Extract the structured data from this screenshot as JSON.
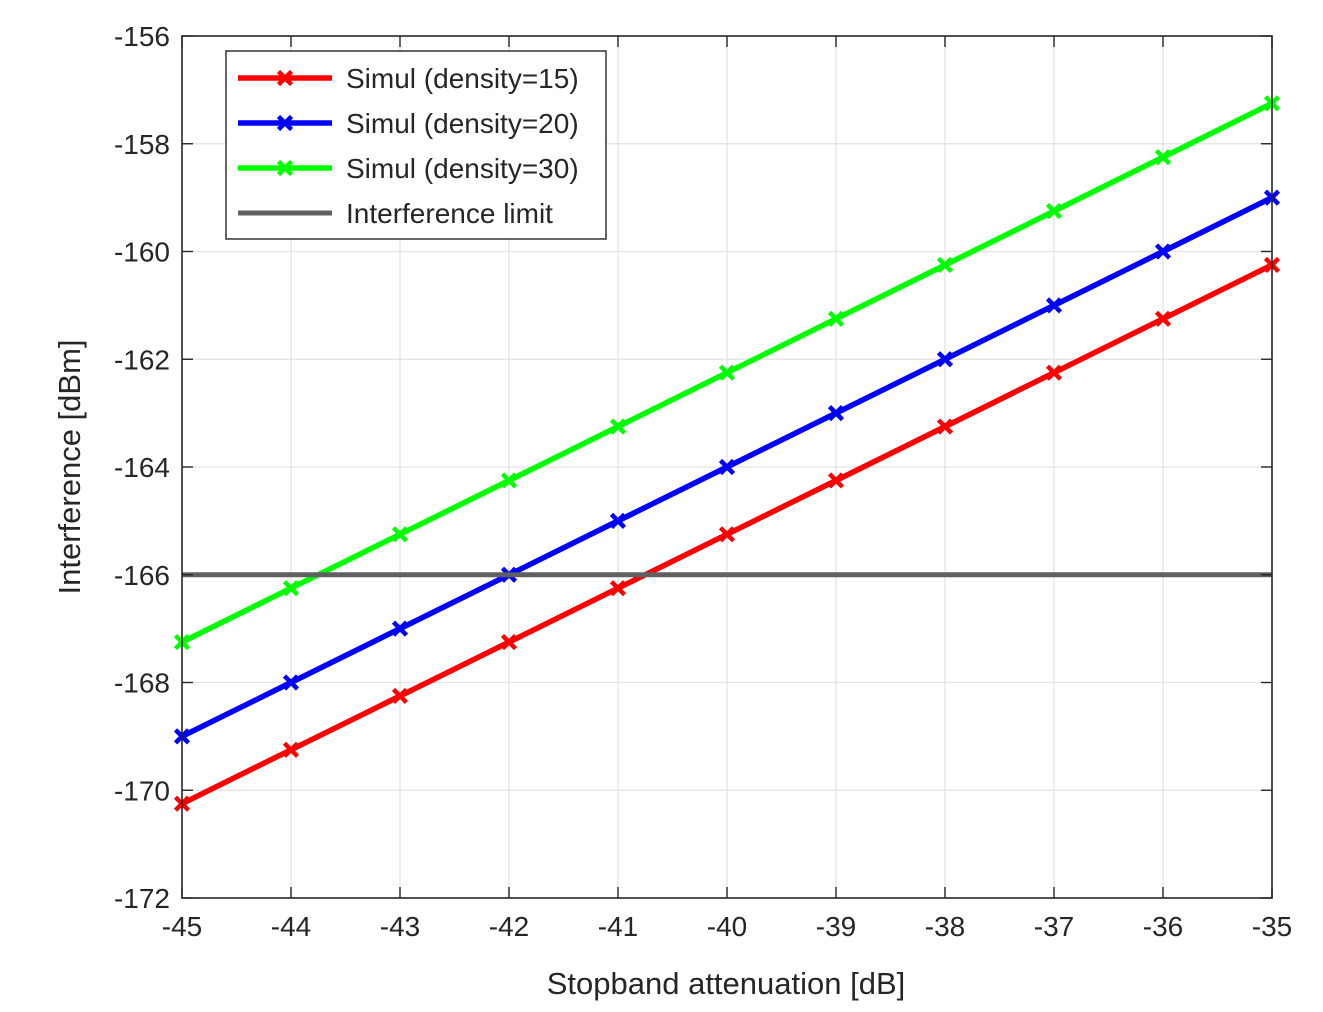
{
  "chart_data": {
    "type": "line",
    "title": "",
    "xlabel": "Stopband attenuation [dB]",
    "ylabel": "Interference [dBm]",
    "xlim": [
      -45,
      -35
    ],
    "ylim": [
      -172,
      -156
    ],
    "xticks": [
      -45,
      -44,
      -43,
      -42,
      -41,
      -40,
      -39,
      -38,
      -37,
      -36,
      -35
    ],
    "yticks": [
      -172,
      -170,
      -168,
      -166,
      -164,
      -162,
      -160,
      -158,
      -156
    ],
    "grid": true,
    "legend_position": "top-left",
    "x": [
      -45,
      -44,
      -43,
      -42,
      -41,
      -40,
      -39,
      -38,
      -37,
      -36,
      -35
    ],
    "series": [
      {
        "name": "Simul (density=15)",
        "color": "#ff0000",
        "marker": "x",
        "values": [
          -170.25,
          -169.25,
          -168.25,
          -167.25,
          -166.25,
          -165.25,
          -164.25,
          -163.25,
          -162.25,
          -161.25,
          -160.25
        ]
      },
      {
        "name": "Simul (density=20)",
        "color": "#0000ff",
        "marker": "x",
        "values": [
          -169.0,
          -168.0,
          -167.0,
          -166.0,
          -165.0,
          -164.0,
          -163.0,
          -162.0,
          -161.0,
          -160.0,
          -159.0
        ]
      },
      {
        "name": "Simul (density=30)",
        "color": "#00ff00",
        "marker": "x",
        "values": [
          -167.25,
          -166.25,
          -165.25,
          -164.25,
          -163.25,
          -162.25,
          -161.25,
          -160.25,
          -159.25,
          -158.25,
          -157.25
        ]
      },
      {
        "name": "Interference limit",
        "color": "#606060",
        "marker": "none",
        "values": [
          -166,
          -166,
          -166,
          -166,
          -166,
          -166,
          -166,
          -166,
          -166,
          -166,
          -166
        ]
      }
    ]
  }
}
